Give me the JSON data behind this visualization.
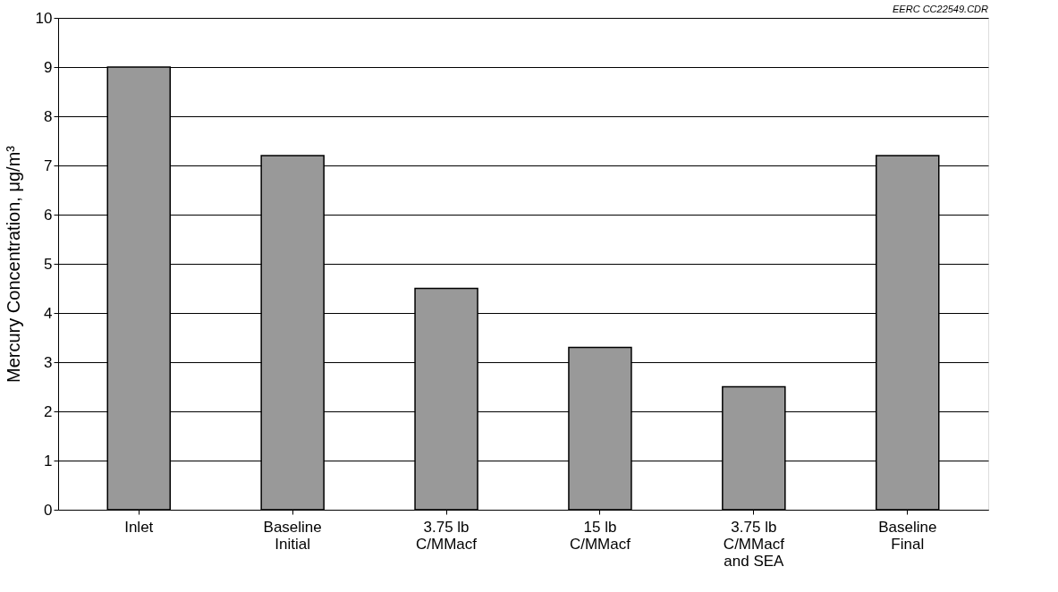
{
  "chart_data": {
    "type": "bar",
    "categories": [
      "Inlet",
      "Baseline\nInitial",
      "3.75 lb\nC/MMacf",
      "15 lb\nC/MMacf",
      "3.75 lb\nC/MMacf\nand SEA",
      "Baseline\nFinal"
    ],
    "values": [
      9.0,
      7.2,
      4.5,
      3.3,
      2.5,
      7.2
    ],
    "color": "#999999",
    "ylabel": "Mercury Concentration, μg/m³",
    "ylim": [
      0,
      10
    ],
    "yticks": [
      0,
      1,
      2,
      3,
      4,
      5,
      6,
      7,
      8,
      9,
      10
    ],
    "grid": "y",
    "annotations": [
      "EERC CC22549.CDR"
    ]
  }
}
